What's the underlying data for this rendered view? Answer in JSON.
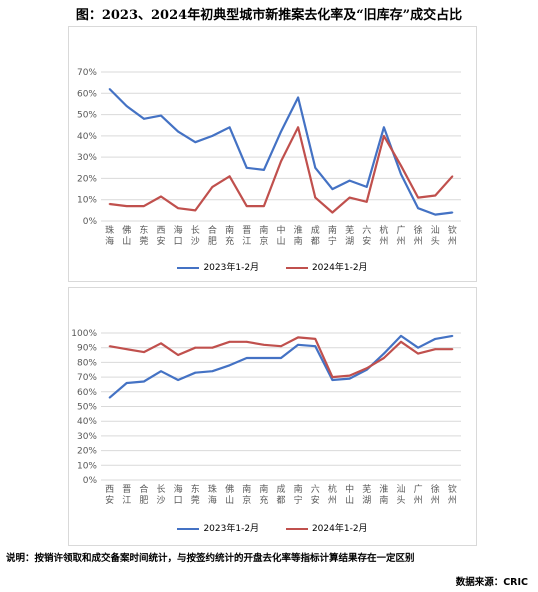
{
  "figure_title": "图：2023、2024年初典型城市新推案去化率及“旧库存”成交占比",
  "note": "说明：按销许领取和成交备案时间统计，与按签约统计的开盘去化率等指标计算结果存在一定区别",
  "source": "数据来源：CRIC",
  "colors": {
    "series_2023": "#4472C4",
    "series_2024": "#C0504D",
    "grid": "#d9d9d9",
    "axis_text": "#595959"
  },
  "chart_data": [
    {
      "type": "line",
      "title": "",
      "xlabel": "",
      "ylabel": "",
      "ylim": [
        0,
        70
      ],
      "yticks": [
        "0%",
        "10%",
        "20%",
        "30%",
        "40%",
        "50%",
        "60%",
        "70%"
      ],
      "grid": true,
      "legend_position": "bottom",
      "categories": [
        "珠海",
        "佛山",
        "东莞",
        "西安",
        "海口",
        "长沙",
        "合肥",
        "南充",
        "晋江",
        "南京",
        "中山",
        "淮南",
        "成都",
        "南宁",
        "芜湖",
        "六安",
        "杭州",
        "广州",
        "徐州",
        "汕头",
        "钦州"
      ],
      "series": [
        {
          "name": "2023年1-2月",
          "values": [
            62,
            54,
            48,
            49.5,
            42,
            37,
            40,
            44,
            25,
            24,
            42,
            58,
            25,
            15,
            19,
            16,
            44,
            22,
            6,
            3,
            4
          ]
        },
        {
          "name": "2024年1-2月",
          "values": [
            8,
            7,
            7,
            11.5,
            6,
            5,
            16,
            21,
            7,
            7,
            28,
            44,
            11,
            4,
            11,
            9,
            40,
            26,
            11,
            12,
            21
          ]
        }
      ]
    },
    {
      "type": "line",
      "title": "",
      "xlabel": "",
      "ylabel": "",
      "ylim": [
        0,
        100
      ],
      "yticks": [
        "0%",
        "10%",
        "20%",
        "30%",
        "40%",
        "50%",
        "60%",
        "70%",
        "80%",
        "90%",
        "100%"
      ],
      "grid": true,
      "legend_position": "bottom",
      "categories": [
        "西安",
        "晋江",
        "合肥",
        "长沙",
        "海口",
        "东莞",
        "珠海",
        "佛山",
        "南京",
        "南充",
        "成都",
        "南宁",
        "六安",
        "杭州",
        "中山",
        "芜湖",
        "淮南",
        "汕头",
        "广州",
        "徐州",
        "钦州"
      ],
      "series": [
        {
          "name": "2023年1-2月",
          "values": [
            56,
            66,
            67,
            74,
            68,
            73,
            74,
            78,
            83,
            83,
            83,
            92,
            91,
            68,
            69,
            75,
            86,
            98,
            90,
            96,
            98
          ]
        },
        {
          "name": "2024年1-2月",
          "values": [
            91,
            89,
            87,
            93,
            85,
            90,
            90,
            94,
            94,
            92,
            91,
            97,
            96,
            70,
            71,
            76,
            83,
            94,
            86,
            89,
            89
          ]
        }
      ]
    }
  ]
}
